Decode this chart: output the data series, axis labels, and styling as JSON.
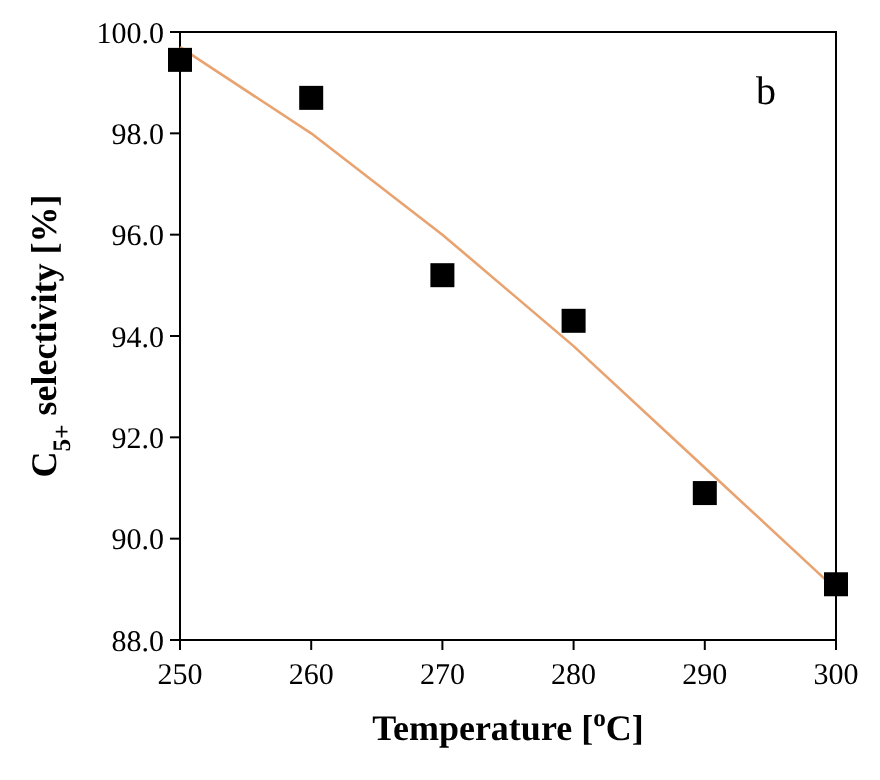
{
  "chart_data": {
    "type": "scatter",
    "xlabel": "Temperature [$^{o}$C]",
    "ylabel": "C$_{5+}$ selectivity [%]",
    "annotations": [
      "b"
    ],
    "xlim": [
      250,
      300
    ],
    "xticks": [
      250,
      260,
      270,
      280,
      290,
      300
    ],
    "ylim": [
      88,
      100
    ],
    "yticks": [
      {
        "value": 88,
        "label": "88.0"
      },
      {
        "value": 90,
        "label": "90.0"
      },
      {
        "value": 92,
        "label": "92.0"
      },
      {
        "value": 94,
        "label": "94.0"
      },
      {
        "value": 96,
        "label": "96.0"
      },
      {
        "value": 98,
        "label": "98.0"
      },
      {
        "value": 100,
        "label": "100.0"
      }
    ],
    "marker": "square",
    "grid": false,
    "series": [
      {
        "color": "#000000",
        "x": [
          250,
          260,
          270,
          280,
          290,
          300
        ],
        "values": [
          99.45,
          98.7,
          95.2,
          94.3,
          90.9,
          89.1
        ]
      },
      {
        "type": "line",
        "color": "#e8a370",
        "x": [
          250,
          260,
          270,
          280,
          290,
          300
        ],
        "values": [
          99.7,
          98.0,
          96.0,
          93.8,
          91.4,
          89.0
        ],
        "marker": "none"
      }
    ]
  }
}
